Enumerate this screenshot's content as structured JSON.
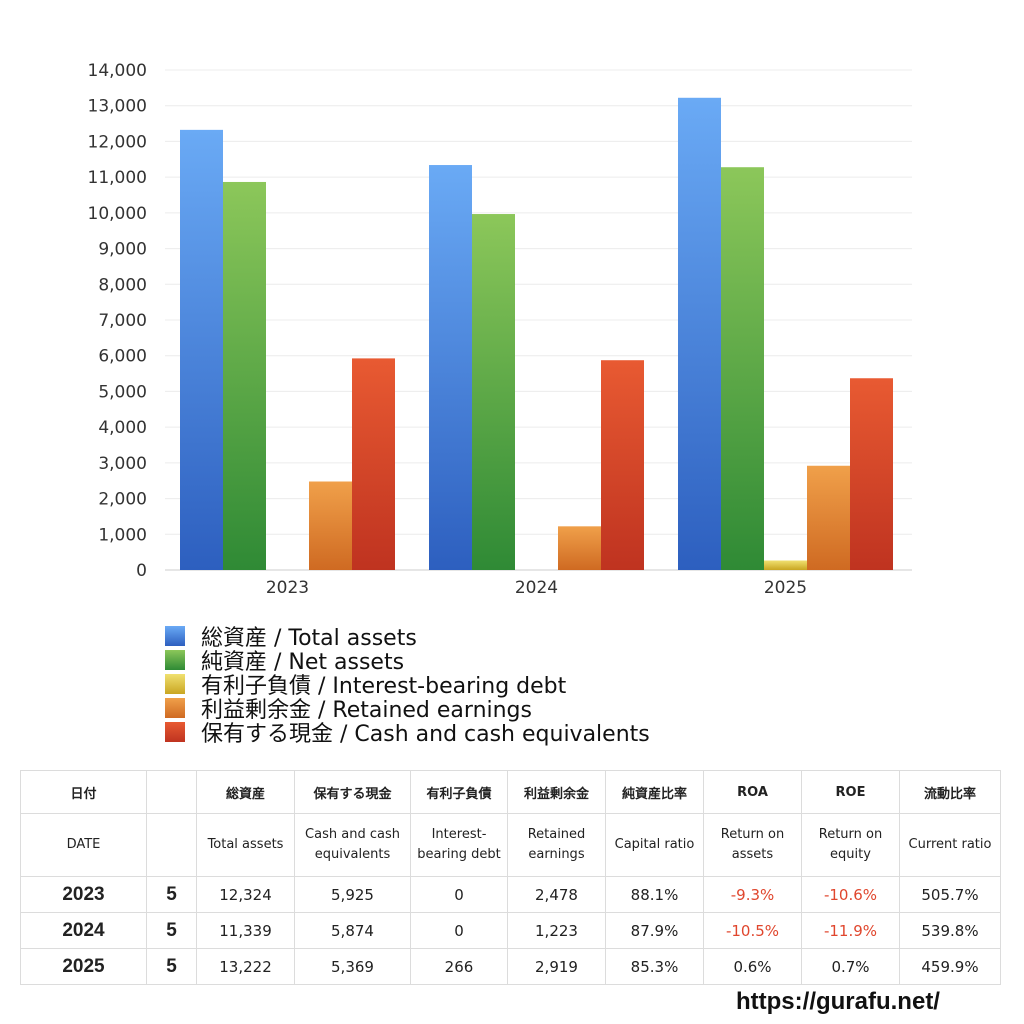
{
  "chart_data": {
    "type": "bar",
    "categories": [
      "2023",
      "2024",
      "2025"
    ],
    "ylim": [
      0,
      14000
    ],
    "yticks": [
      "0",
      "1,000",
      "2,000",
      "3,000",
      "4,000",
      "5,000",
      "6,000",
      "7,000",
      "8,000",
      "9,000",
      "10,000",
      "11,000",
      "12,000",
      "13,000",
      "14,000"
    ],
    "grid": true,
    "legend_placement": "bottom",
    "series": [
      {
        "name": "総資産 / Total assets",
        "values": [
          12324,
          11339,
          13222
        ],
        "color_top": "#6aaaf5",
        "color_bottom": "#2d5fbf"
      },
      {
        "name": "純資産 / Net assets",
        "values": [
          10865,
          9967,
          11278
        ],
        "color_top": "#8cc75a",
        "color_bottom": "#2f8a35"
      },
      {
        "name": "有利子負債 / Interest-bearing debt",
        "values": [
          0,
          0,
          266
        ],
        "color_top": "#f0e070",
        "color_bottom": "#c9a622"
      },
      {
        "name": "利益剰余金 / Retained earnings",
        "values": [
          2478,
          1223,
          2919
        ],
        "color_top": "#f0a04a",
        "color_bottom": "#cf6a22"
      },
      {
        "name": "保有する現金 /  Cash and cash equivalents",
        "values": [
          5925,
          5874,
          5369
        ],
        "color_top": "#e85a32",
        "color_bottom": "#bf3320"
      }
    ]
  },
  "table": {
    "header_jp": [
      "日付",
      "",
      "総資産",
      "保有する現金",
      "有利子負債",
      "利益剰余金",
      "純資産比率",
      "ROA",
      "ROE",
      "流動比率"
    ],
    "header_en": [
      "DATE",
      "",
      "Total assets",
      "Cash and cash equivalents",
      "Interest-bearing debt",
      "Retained earnings",
      "Capital ratio",
      "Return on assets",
      "Return on equity",
      "Current ratio"
    ],
    "rows": [
      {
        "date": "2023",
        "months": "5",
        "total_assets": "12,324",
        "cash": "5,925",
        "debt": "0",
        "retained": "2,478",
        "capital_ratio": "88.1%",
        "roa": "-9.3%",
        "roe": "-10.6%",
        "current_ratio": "505.7%"
      },
      {
        "date": "2024",
        "months": "5",
        "total_assets": "11,339",
        "cash": "5,874",
        "debt": "0",
        "retained": "1,223",
        "capital_ratio": "87.9%",
        "roa": "-10.5%",
        "roe": "-11.9%",
        "current_ratio": "539.8%"
      },
      {
        "date": "2025",
        "months": "5",
        "total_assets": "13,222",
        "cash": "5,369",
        "debt": "266",
        "retained": "2,919",
        "capital_ratio": "85.3%",
        "roa": "0.6%",
        "roe": "0.7%",
        "current_ratio": "459.9%"
      }
    ]
  },
  "negative_color": "#e0462d",
  "footer_url": "https://gurafu.net/"
}
